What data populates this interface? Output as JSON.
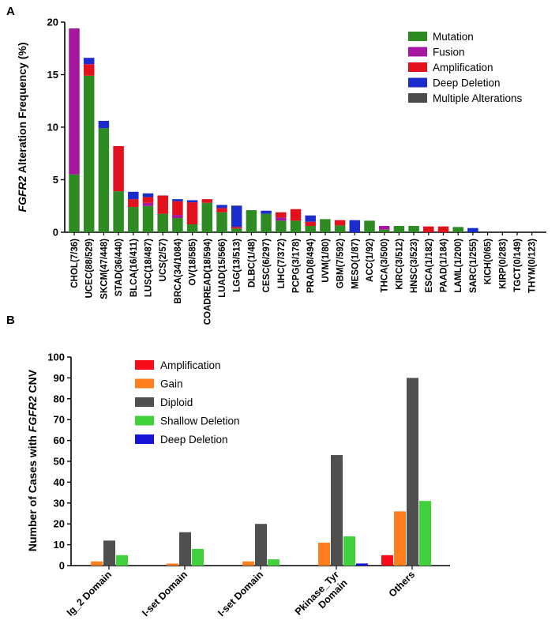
{
  "panel_labels": {
    "a": "A",
    "b": "B"
  },
  "chart_data": [
    {
      "id": "A",
      "type": "bar",
      "stacked": true,
      "ylabel_prefix": "",
      "ylabel_italic": "FGFR2",
      "ylabel_suffix": " Alteration Frequency (%)",
      "ylim": [
        0,
        20
      ],
      "yticks": [
        0,
        5,
        10,
        15,
        20
      ],
      "legend_position": "top-right",
      "legend_labels": [
        "Mutation",
        "Fusion",
        "Amplification",
        "Deep Deletion",
        "Multiple Alterations"
      ],
      "series_colors": [
        "#2e8b22",
        "#a6179f",
        "#e3101d",
        "#1b2ccc",
        "#4a4a4a"
      ],
      "categories": [
        "CHOL(7/36)",
        "UCEC(88/529)",
        "SKCM(47/448)",
        "STAD(36/440)",
        "BLCA(16/411)",
        "LUSC(18/487)",
        "UCS(2/57)",
        "BRCA(34/1084)",
        "OV(18/585)",
        "COADREAD(18/594)",
        "LUAD(15/566)",
        "LGG(13/513)",
        "DLBC(1/48)",
        "CESC(6/297)",
        "LIHC(7/372)",
        "PCPG(3/178)",
        "PRAD(8/494)",
        "UVM(1/80)",
        "GBM(7/592)",
        "MESO(1/87)",
        "ACC(1/92)",
        "THCA(3/500)",
        "KIRC(3/512)",
        "HNSC(3/523)",
        "ESCA(1/182)",
        "PAAD(1/184)",
        "LAML(1/200)",
        "SARC(1/255)",
        "KICH(0/65)",
        "KIRP(0/283)",
        "TGCT(0/149)",
        "THYM(0/123)"
      ],
      "series": [
        {
          "name": "Mutation",
          "values": [
            5.5,
            14.9,
            9.9,
            3.9,
            2.4,
            2.5,
            1.75,
            1.35,
            0.75,
            2.8,
            1.9,
            0.35,
            2.1,
            1.75,
            1.1,
            1.1,
            0.6,
            1.25,
            0.65,
            0,
            1.1,
            0.25,
            0.6,
            0.6,
            0,
            0,
            0.5,
            0,
            0,
            0,
            0,
            0
          ]
        },
        {
          "name": "Fusion",
          "values": [
            13.9,
            0,
            0,
            0,
            0,
            0.3,
            0,
            0.3,
            0,
            0,
            0,
            0,
            0,
            0,
            0.3,
            0,
            0,
            0,
            0,
            0,
            0,
            0.35,
            0,
            0,
            0,
            0,
            0,
            0,
            0,
            0,
            0,
            0
          ]
        },
        {
          "name": "Amplification",
          "values": [
            0,
            1.1,
            0,
            4.3,
            0.75,
            0.55,
            1.75,
            1.3,
            2.1,
            0.35,
            0.4,
            0.15,
            0,
            0,
            0.5,
            1.1,
            0.4,
            0,
            0.5,
            0,
            0,
            0,
            0,
            0,
            0.55,
            0.55,
            0,
            0,
            0,
            0,
            0,
            0
          ]
        },
        {
          "name": "Deep Deletion",
          "values": [
            0,
            0.6,
            0.7,
            0,
            0.7,
            0.35,
            0,
            0.2,
            0.2,
            0,
            0.3,
            2.0,
            0,
            0.3,
            0,
            0,
            0.6,
            0,
            0,
            1.15,
            0,
            0,
            0,
            0,
            0,
            0,
            0,
            0.4,
            0,
            0,
            0,
            0
          ]
        },
        {
          "name": "Multiple Alterations",
          "values": [
            0,
            0,
            0,
            0,
            0,
            0,
            0,
            0,
            0,
            0,
            0,
            0.05,
            0,
            0,
            0,
            0,
            0,
            0,
            0,
            0,
            0,
            0,
            0,
            0,
            0,
            0,
            0,
            0,
            0,
            0,
            0,
            0
          ]
        }
      ]
    },
    {
      "id": "B",
      "type": "bar",
      "stacked": false,
      "ylabel_prefix": "Number of Cases with ",
      "ylabel_italic": "FGFR2",
      "ylabel_suffix": " CNV",
      "ylim": [
        0,
        100
      ],
      "yticks": [
        0,
        10,
        20,
        30,
        40,
        50,
        60,
        70,
        80,
        90,
        100
      ],
      "legend_position": "top-left",
      "legend_labels": [
        "Amplification",
        "Gain",
        "Diploid",
        "Shallow Deletion",
        "Deep Deletion"
      ],
      "series_colors": [
        "#f70d1a",
        "#ff7f1e",
        "#4f4f4f",
        "#3fd23a",
        "#1713d6"
      ],
      "categories": [
        [
          "Ig_2 Domain"
        ],
        [
          "I-set Domain"
        ],
        [
          "I-set Domain"
        ],
        [
          "Pkinase_Tyr",
          "Domain"
        ],
        [
          "Others"
        ]
      ],
      "series": [
        {
          "name": "Amplification",
          "values": [
            0,
            0,
            0,
            0,
            5
          ]
        },
        {
          "name": "Gain",
          "values": [
            2,
            1,
            2,
            11,
            26
          ]
        },
        {
          "name": "Diploid",
          "values": [
            12,
            16,
            20,
            53,
            90
          ]
        },
        {
          "name": "Shallow Deletion",
          "values": [
            5,
            8,
            3,
            14,
            31
          ]
        },
        {
          "name": "Deep Deletion",
          "values": [
            0,
            0,
            0,
            1,
            0
          ]
        }
      ]
    }
  ]
}
